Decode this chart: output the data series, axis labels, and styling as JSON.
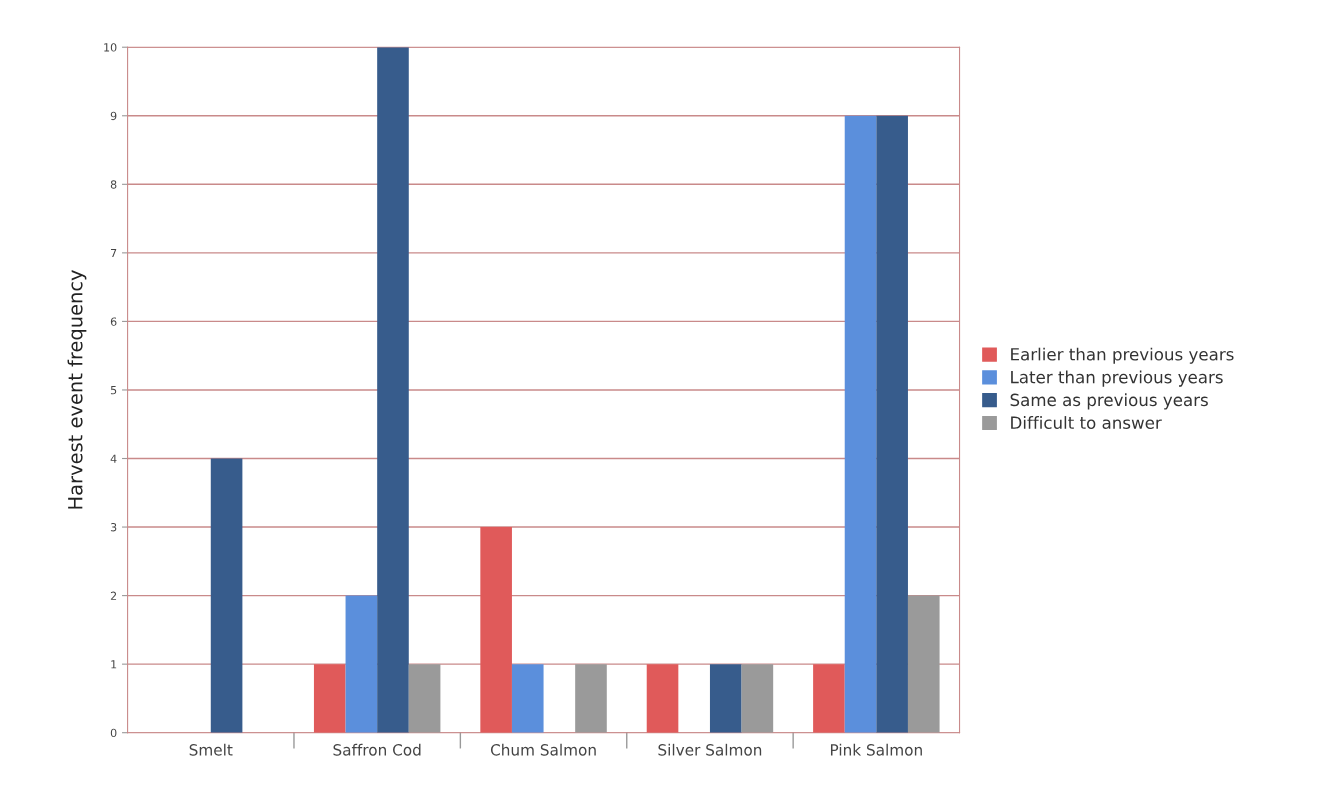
{
  "chart_data": {
    "type": "bar",
    "ylabel": "Harvest event frequency",
    "categories": [
      "Smelt",
      "Saffron Cod",
      "Chum Salmon",
      "Silver Salmon",
      "Pink Salmon"
    ],
    "series": [
      {
        "name": "Earlier than previous years",
        "color": "#e05a5a",
        "values": [
          0,
          1,
          3,
          1,
          1
        ]
      },
      {
        "name": "Later than previous years",
        "color": "#5b8fdc",
        "values": [
          0,
          2,
          1,
          0,
          9
        ]
      },
      {
        "name": "Same as previous years",
        "color": "#375c8c",
        "values": [
          4,
          10,
          0,
          1,
          9
        ]
      },
      {
        "name": "Difficult to answer",
        "color": "#9a9a9a",
        "values": [
          0,
          1,
          1,
          1,
          2
        ]
      }
    ],
    "ylim": [
      0,
      10
    ],
    "yticks": [
      0,
      1,
      2,
      3,
      4,
      5,
      6,
      7,
      8,
      9,
      10
    ],
    "grid": "y",
    "legend": "right"
  }
}
